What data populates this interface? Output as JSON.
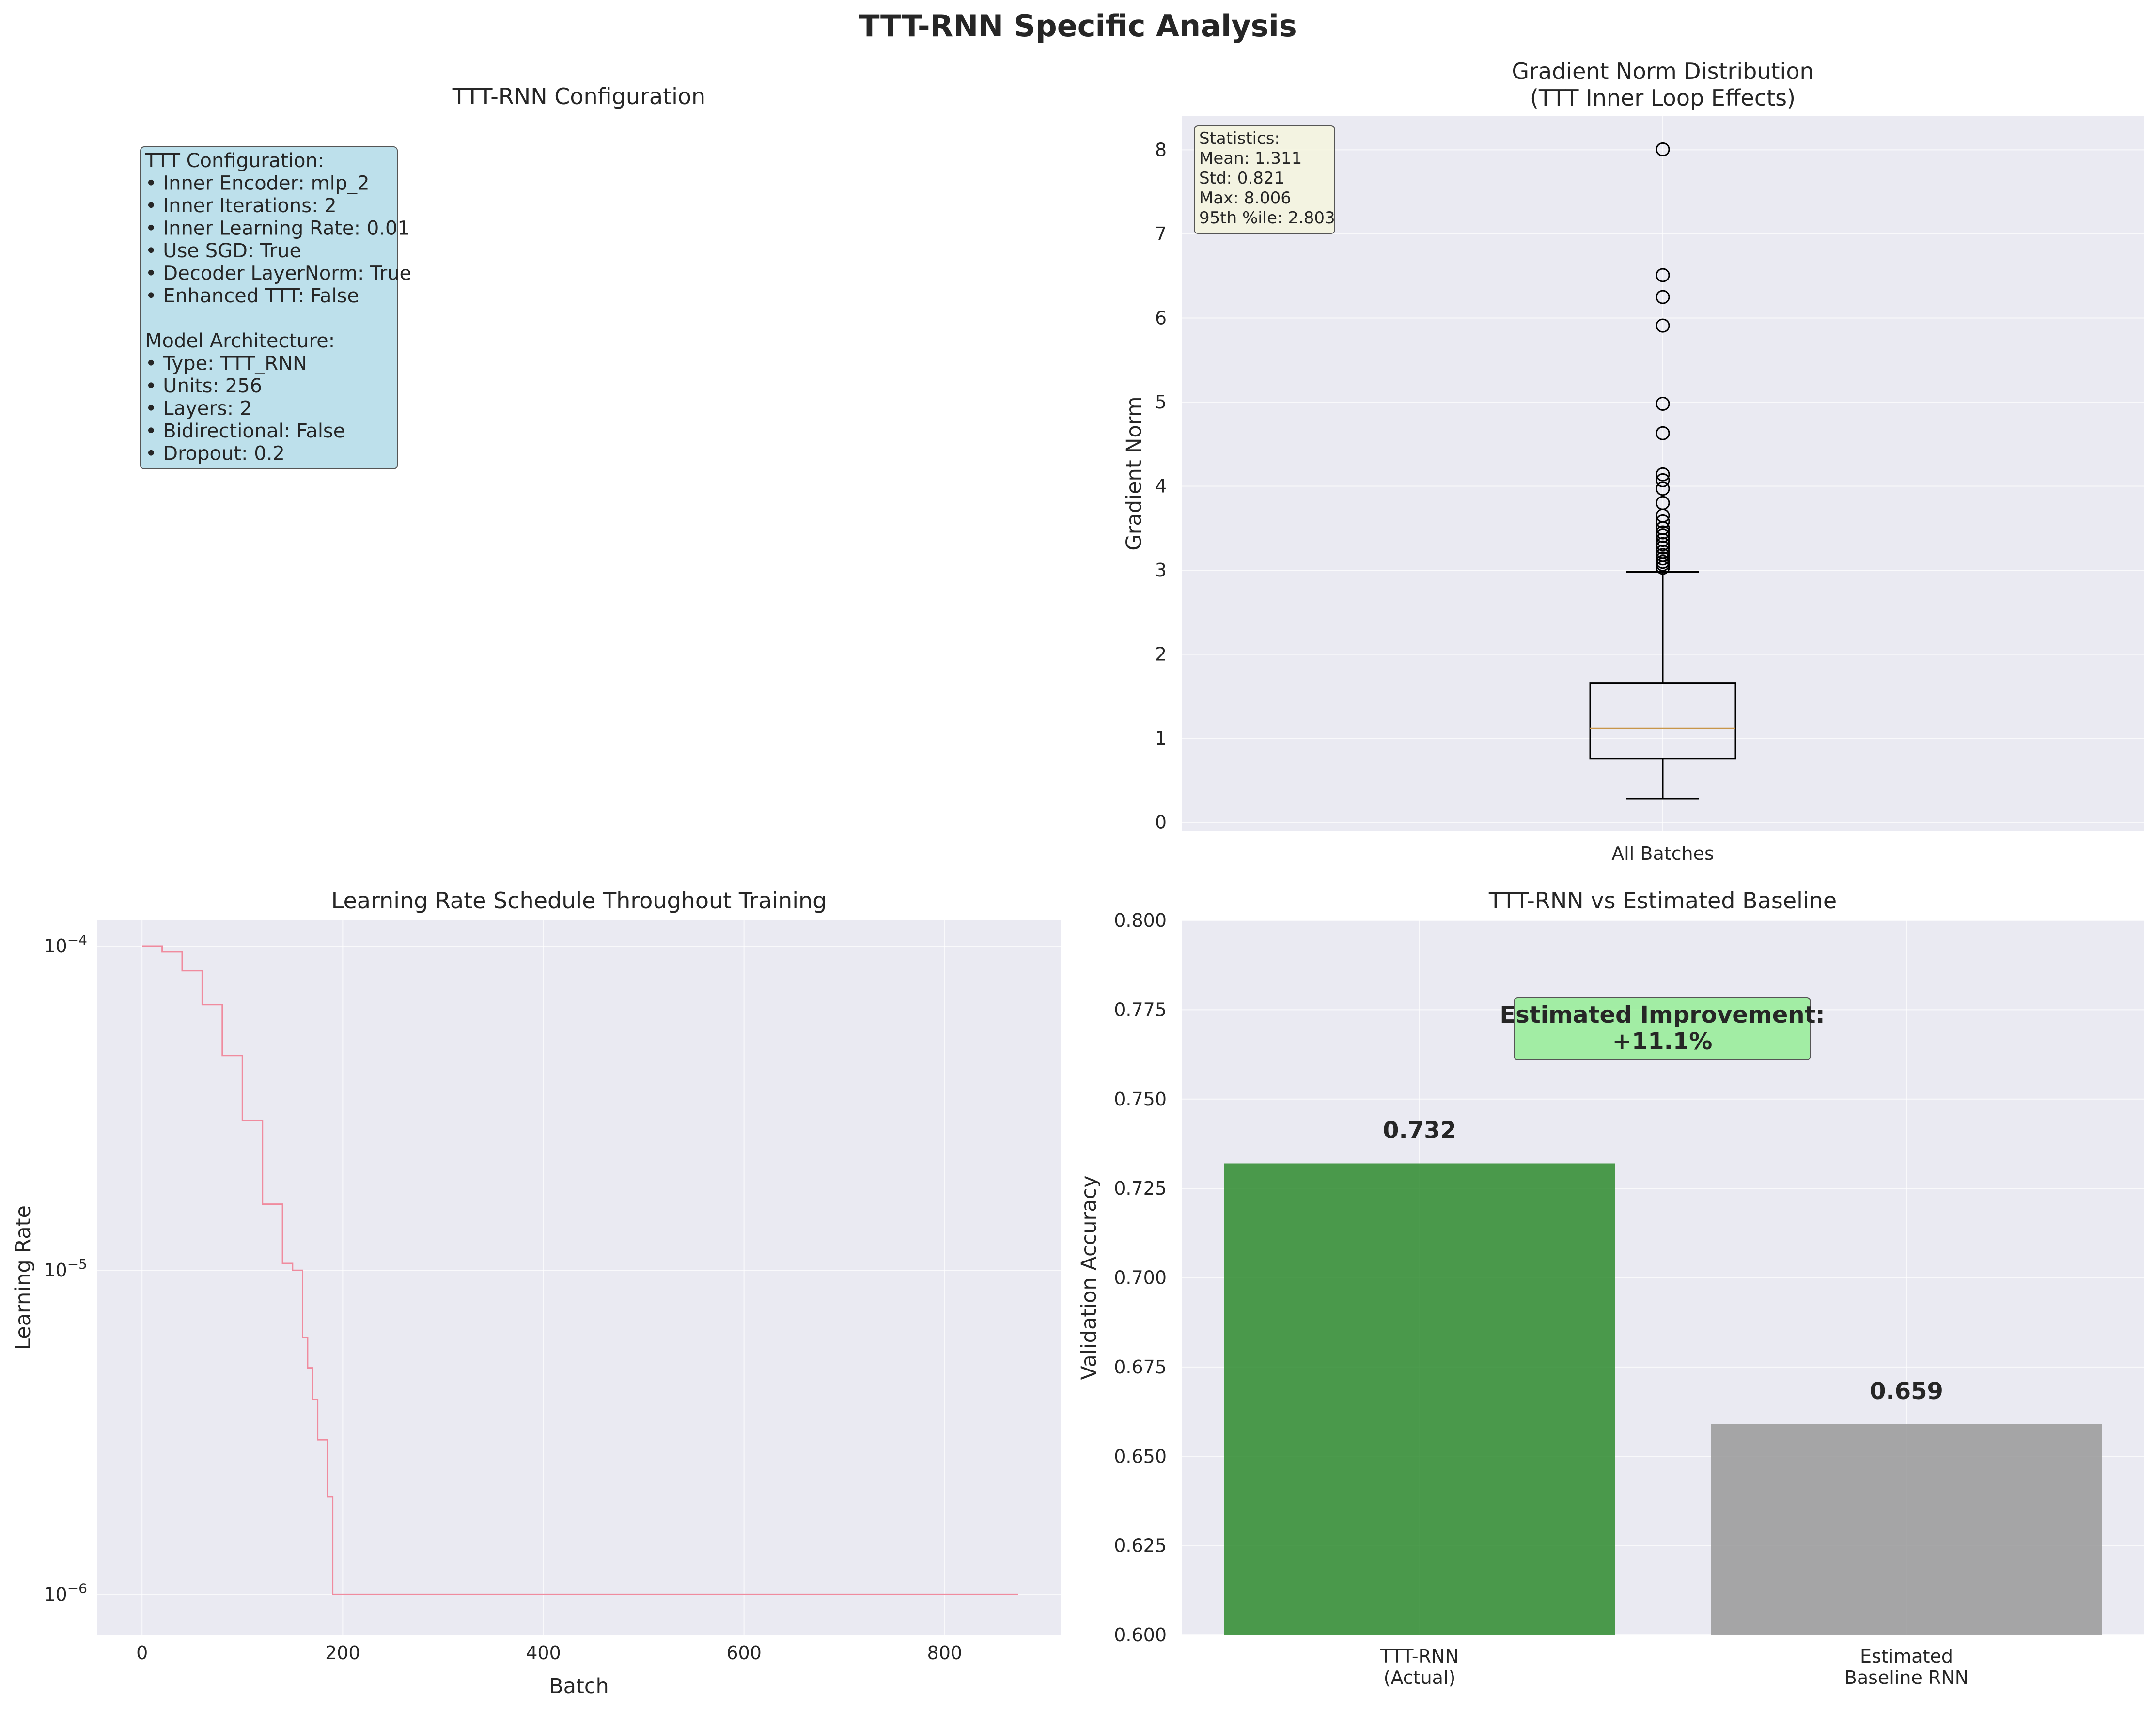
{
  "suptitle": "TTT-RNN Specific Analysis",
  "colors": {
    "axes_bg": "#eaeaf2",
    "config_box": "#add8e6",
    "stats_box": "#f5f5dc",
    "improvement_box": "#90ee90",
    "bar_ttt": "#2e8b2e",
    "bar_baseline": "#999999",
    "lr_line": "#f08b9e",
    "median": "#c8964a"
  },
  "panel_config": {
    "title": "TTT-RNN Configuration",
    "lines": [
      "TTT Configuration:",
      "• Inner Encoder: mlp_2",
      "• Inner Iterations: 2",
      "• Inner Learning Rate: 0.01",
      "• Use SGD: True",
      "• Decoder LayerNorm: True",
      "• Enhanced TTT: False",
      "",
      "Model Architecture:",
      "• Type: TTT_RNN",
      "• Units: 256",
      "• Layers: 2",
      "• Bidirectional: False",
      "• Dropout: 0.2"
    ]
  },
  "chart_data": [
    {
      "type": "box",
      "title": "Gradient Norm Distribution\n(TTT Inner Loop Effects)",
      "title_lines": [
        "Gradient Norm Distribution",
        "(TTT Inner Loop Effects)"
      ],
      "ylabel": "Gradient Norm",
      "categories": [
        "All Batches"
      ],
      "ylim": [
        -0.1,
        8.4
      ],
      "yticks": [
        0,
        1,
        2,
        3,
        4,
        5,
        6,
        7,
        8
      ],
      "grid": true,
      "box": {
        "whisker_low": 0.28,
        "q1": 0.76,
        "median": 1.12,
        "q3": 1.66,
        "whisker_high": 2.98
      },
      "outliers": [
        3.03,
        3.07,
        3.1,
        3.14,
        3.18,
        3.22,
        3.27,
        3.31,
        3.36,
        3.41,
        3.45,
        3.5,
        3.58,
        3.65,
        3.8,
        3.97,
        4.07,
        4.14,
        4.63,
        4.98,
        5.91,
        6.25,
        6.51,
        8.006
      ],
      "stats_lines": [
        "Statistics:",
        "Mean: 1.311",
        "Std: 0.821",
        "Max: 8.006",
        "95th %ile: 2.803"
      ],
      "stats_placement": "top-left"
    },
    {
      "type": "line",
      "title": "Learning Rate Schedule Throughout Training",
      "xlabel": "Batch",
      "ylabel": "Learning Rate",
      "yscale": "log",
      "xlim": [
        -45,
        916
      ],
      "ylim": [
        7.5e-07,
        0.00012
      ],
      "xticks": [
        0,
        200,
        400,
        600,
        800
      ],
      "yticks": [
        1e-06,
        1e-05,
        0.0001
      ],
      "ytick_labels": [
        "10^−6",
        "10^−5",
        "10^−4"
      ],
      "grid": true,
      "series": [
        {
          "x": [
            0,
            20,
            40,
            60,
            80,
            100,
            120,
            140,
            150,
            160,
            165,
            170,
            175,
            180,
            185,
            187,
            190,
            300,
            400,
            500,
            600,
            700,
            800,
            873
          ],
          "y": [
            0.0001,
            9.6e-05,
            8.4e-05,
            6.6e-05,
            4.6e-05,
            2.9e-05,
            1.6e-05,
            1.05e-05,
            1e-05,
            6.2e-06,
            5e-06,
            4e-06,
            3e-06,
            3e-06,
            2e-06,
            2e-06,
            1e-06,
            1e-06,
            1e-06,
            1e-06,
            1e-06,
            1e-06,
            1e-06,
            1e-06
          ]
        }
      ]
    },
    {
      "type": "bar",
      "title": "TTT-RNN vs Estimated Baseline",
      "ylabel": "Validation Accuracy",
      "categories": [
        "TTT-RNN\n(Actual)",
        "Estimated\nBaseline RNN"
      ],
      "category_lines": [
        [
          "TTT-RNN",
          "(Actual)"
        ],
        [
          "Estimated",
          "Baseline RNN"
        ]
      ],
      "values": [
        0.732,
        0.659
      ],
      "value_labels": [
        "0.732",
        "0.659"
      ],
      "ylim": [
        0.6,
        0.8
      ],
      "yticks": [
        "0.600",
        "0.625",
        "0.650",
        "0.675",
        "0.700",
        "0.725",
        "0.750",
        "0.775",
        "0.800"
      ],
      "grid": true,
      "annotation_lines": [
        "Estimated Improvement:",
        "+11.1%"
      ]
    }
  ]
}
